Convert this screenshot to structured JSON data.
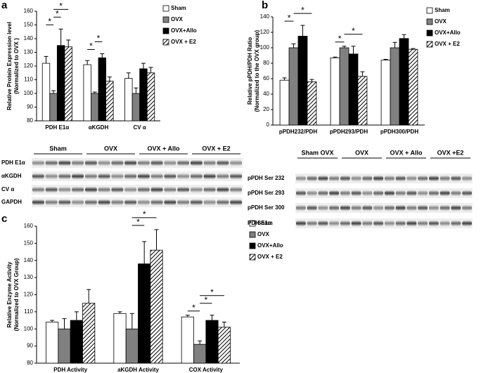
{
  "chart_data": [
    {
      "type": "bar",
      "label": "a",
      "ylabel": [
        "Relative Protein Expression level",
        "(Normalized to OVX )"
      ],
      "categories": [
        "PDH E1α",
        "αKGDH",
        "CV α"
      ],
      "series": [
        {
          "name": "Sham",
          "color": "#ffffff",
          "values": [
            122,
            121,
            111
          ],
          "errors": [
            5,
            3,
            4
          ]
        },
        {
          "name": "OVX",
          "color": "#808080",
          "values": [
            100,
            100,
            100
          ],
          "errors": [
            2,
            1,
            4
          ]
        },
        {
          "name": "OVX+Allo",
          "color": "#000000",
          "values": [
            135,
            126,
            118
          ],
          "errors": [
            12,
            3,
            4
          ]
        },
        {
          "name": "OVX + E2",
          "color": "#ffffff",
          "hatch": true,
          "values": [
            134,
            109,
            115
          ],
          "errors": [
            5,
            3,
            4
          ]
        }
      ],
      "ylim": [
        80,
        160
      ],
      "yticks": [
        80,
        90,
        100,
        110,
        120,
        130,
        140,
        150,
        160
      ],
      "significance": [
        {
          "text": "*",
          "category": 0,
          "series": [
            0,
            1
          ]
        },
        {
          "text": "*",
          "category": 0,
          "series": [
            1,
            2
          ]
        },
        {
          "text": "*",
          "category": 0,
          "series": [
            1,
            3
          ]
        },
        {
          "text": "*",
          "category": 1,
          "series": [
            0,
            1
          ]
        },
        {
          "text": "*",
          "category": 1,
          "series": [
            1,
            2
          ]
        }
      ]
    },
    {
      "type": "bar",
      "label": "b",
      "ylabel": [
        "Relative pPDH/PDH Ratio",
        "(Normalized to the OVX group)"
      ],
      "categories": [
        "pPDH232/PDH",
        "pPDH293/PDH",
        "pPDH300/PDH"
      ],
      "series": [
        {
          "name": "Sham",
          "color": "#ffffff",
          "values": [
            58,
            87,
            84
          ],
          "errors": [
            3,
            1,
            1
          ]
        },
        {
          "name": "OVX",
          "color": "#808080",
          "values": [
            100,
            100,
            100
          ],
          "errors": [
            5,
            2,
            7
          ]
        },
        {
          "name": "OVX+Allo",
          "color": "#000000",
          "values": [
            115,
            92,
            112
          ],
          "errors": [
            14,
            10,
            5
          ]
        },
        {
          "name": "OVX + E2",
          "color": "#ffffff",
          "hatch": true,
          "values": [
            56,
            63,
            98
          ],
          "errors": [
            3,
            6,
            1
          ]
        }
      ],
      "ylim": [
        0,
        140
      ],
      "yticks": [
        0,
        20,
        40,
        60,
        80,
        100,
        120,
        140
      ],
      "significance": [
        {
          "text": "*",
          "category": 0,
          "series": [
            0,
            1
          ]
        },
        {
          "text": "*",
          "category": 0,
          "series": [
            1,
            3
          ]
        },
        {
          "text": "*",
          "category": 1,
          "series": [
            0,
            1
          ]
        },
        {
          "text": "*",
          "category": 1,
          "series": [
            1,
            3
          ]
        }
      ]
    },
    {
      "type": "bar",
      "label": "c",
      "ylabel": [
        "Relative Enzyme Activity",
        "(Normalized to OVX Group)"
      ],
      "categories": [
        "PDH Activity",
        "aKGDH Activity",
        "COX Activity"
      ],
      "series": [
        {
          "name": "Sham",
          "color": "#ffffff",
          "values": [
            104,
            109,
            107
          ],
          "errors": [
            1,
            1,
            1
          ]
        },
        {
          "name": "OVX",
          "color": "#808080",
          "values": [
            100,
            100,
            91
          ],
          "errors": [
            6,
            9,
            2
          ]
        },
        {
          "name": "OVX+Allo",
          "color": "#000000",
          "values": [
            105,
            138,
            105
          ],
          "errors": [
            5,
            13,
            3
          ]
        },
        {
          "name": "OVX + E2",
          "color": "#ffffff",
          "hatch": true,
          "values": [
            115,
            146,
            101
          ],
          "errors": [
            8,
            12,
            3
          ]
        }
      ],
      "ylim": [
        80,
        160
      ],
      "yticks": [
        80,
        90,
        100,
        110,
        120,
        130,
        140,
        150,
        160
      ],
      "significance": [
        {
          "text": "*",
          "category": 1,
          "series": [
            1,
            2
          ]
        },
        {
          "text": "*",
          "category": 1,
          "series": [
            1,
            3
          ]
        },
        {
          "text": "*",
          "category": 2,
          "series": [
            0,
            1
          ]
        },
        {
          "text": "*",
          "category": 2,
          "series": [
            1,
            2
          ]
        },
        {
          "text": "*",
          "category": 2,
          "series": [
            1,
            3
          ]
        }
      ]
    }
  ],
  "blots": [
    {
      "groups": [
        "Sham",
        "OVX",
        "OVX + Allo",
        "OVX + E2"
      ],
      "rows": [
        "PDH E1α",
        "αKGDH",
        "CV α",
        "GAPDH"
      ]
    },
    {
      "groups": [
        "Sham OVX",
        "OVX",
        "OVX + Allo",
        "OVX +E2"
      ],
      "rows": [
        "pPDH Ser 232",
        "pPDH Ser 293",
        "pPDH Ser 300",
        "PDH E1α"
      ]
    }
  ]
}
